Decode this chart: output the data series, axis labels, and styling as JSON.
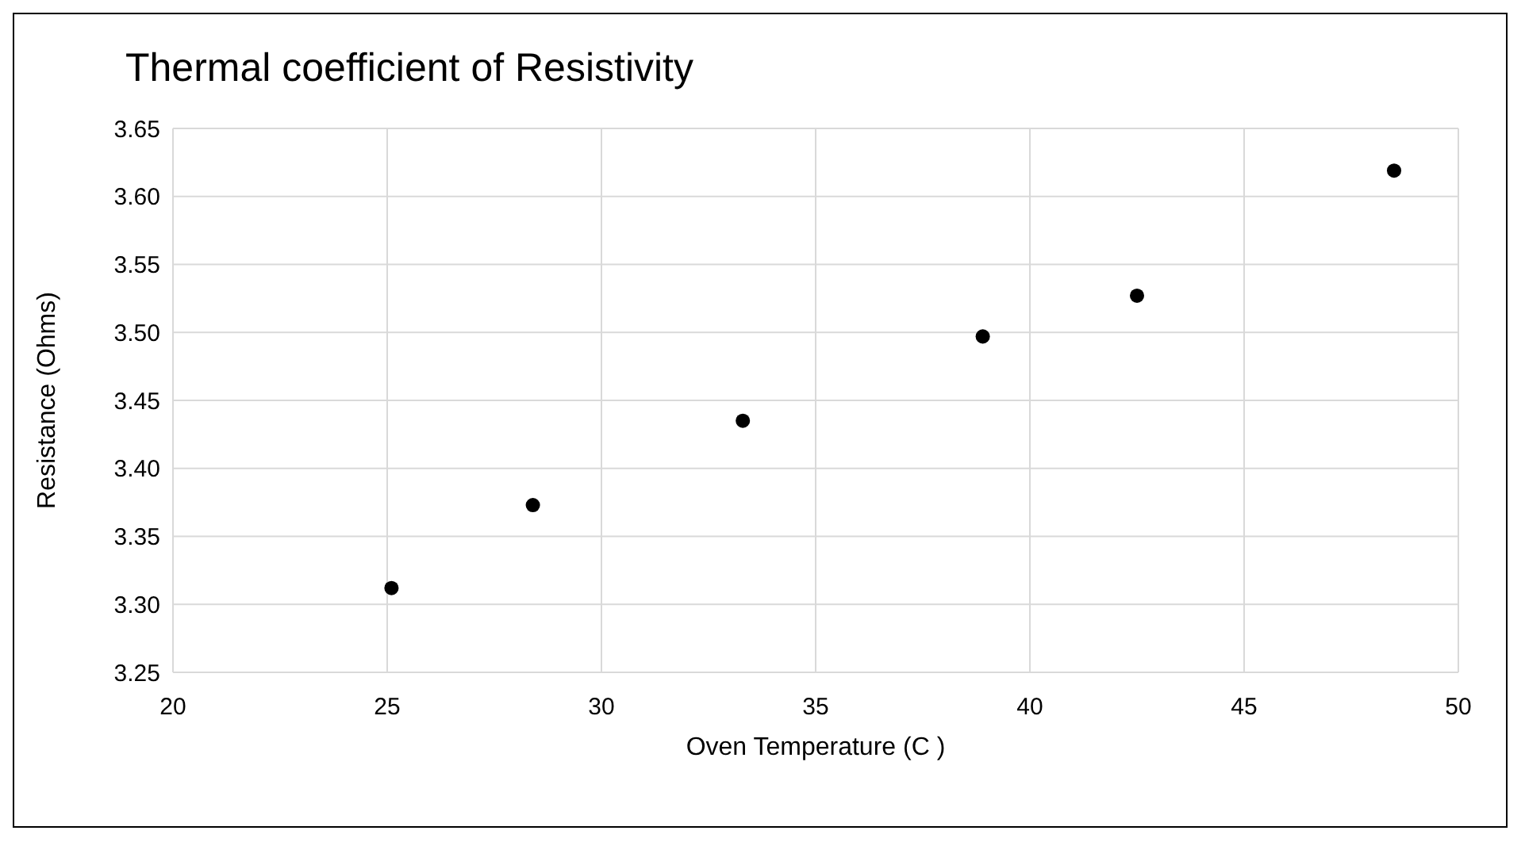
{
  "chart_data": {
    "type": "scatter",
    "title": "Thermal coefficient of Resistivity",
    "xlabel": "Oven Temperature  (C )",
    "ylabel": "Resistance (Ohms)",
    "x": [
      25.1,
      28.4,
      33.3,
      38.9,
      42.5,
      48.5
    ],
    "series": [
      {
        "color": "#000000",
        "values": [
          3.312,
          3.373,
          3.435,
          3.497,
          3.527,
          3.619
        ]
      }
    ],
    "xlim": [
      20,
      50
    ],
    "xticks": [
      20,
      25,
      30,
      35,
      40,
      45,
      50
    ],
    "ylim": [
      3.25,
      3.65
    ],
    "yticks": [
      {
        "value": 3.25,
        "label": "3.25"
      },
      {
        "value": 3.3,
        "label": "3.30"
      },
      {
        "value": 3.35,
        "label": "3.35"
      },
      {
        "value": 3.4,
        "label": "3.40"
      },
      {
        "value": 3.45,
        "label": "3.45"
      },
      {
        "value": 3.5,
        "label": "3.50"
      },
      {
        "value": 3.55,
        "label": "3.55"
      },
      {
        "value": 3.6,
        "label": "3.60"
      },
      {
        "value": 3.65,
        "label": "3.65"
      }
    ],
    "grid": true,
    "legend": false,
    "marker": "circle"
  }
}
